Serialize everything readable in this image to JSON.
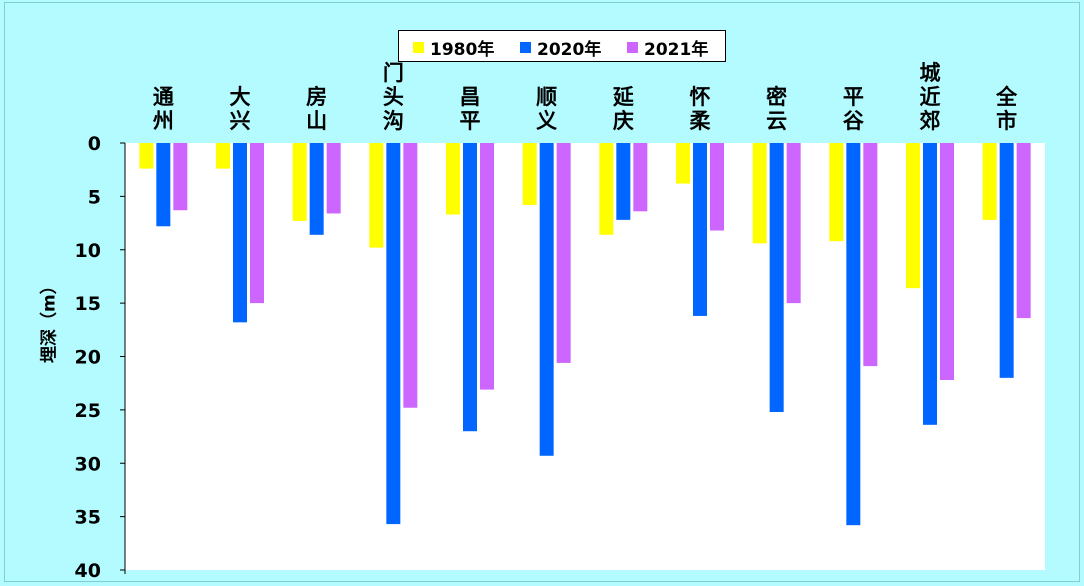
{
  "chart_data": {
    "type": "bar",
    "categories": [
      "通州",
      "大兴",
      "房山",
      "门头沟",
      "昌平",
      "顺义",
      "延庆",
      "怀柔",
      "密云",
      "平谷",
      "城近郊",
      "全市"
    ],
    "series": [
      {
        "name": "1980年",
        "color": "#ffff00",
        "values": [
          2.4,
          2.4,
          7.3,
          9.8,
          6.7,
          5.8,
          8.6,
          3.8,
          9.4,
          9.2,
          13.6,
          7.2
        ]
      },
      {
        "name": "2020年",
        "color": "#0066ff",
        "values": [
          7.8,
          16.8,
          8.6,
          35.7,
          27.0,
          29.3,
          7.2,
          16.2,
          25.2,
          35.8,
          26.4,
          22.0
        ]
      },
      {
        "name": "2021年",
        "color": "#cc66ff",
        "values": [
          6.3,
          15.0,
          6.6,
          24.8,
          23.1,
          20.6,
          6.4,
          8.2,
          15.0,
          20.9,
          22.2,
          16.4
        ]
      }
    ],
    "xlabel": "",
    "ylabel": "埋深（m）",
    "ylim": [
      0,
      40
    ],
    "yticks": [
      0,
      5,
      10,
      15,
      20,
      25,
      30,
      35,
      40
    ],
    "y_inverted": true,
    "legend_position": "top",
    "plot_background": "#ffffff",
    "grid": false
  }
}
